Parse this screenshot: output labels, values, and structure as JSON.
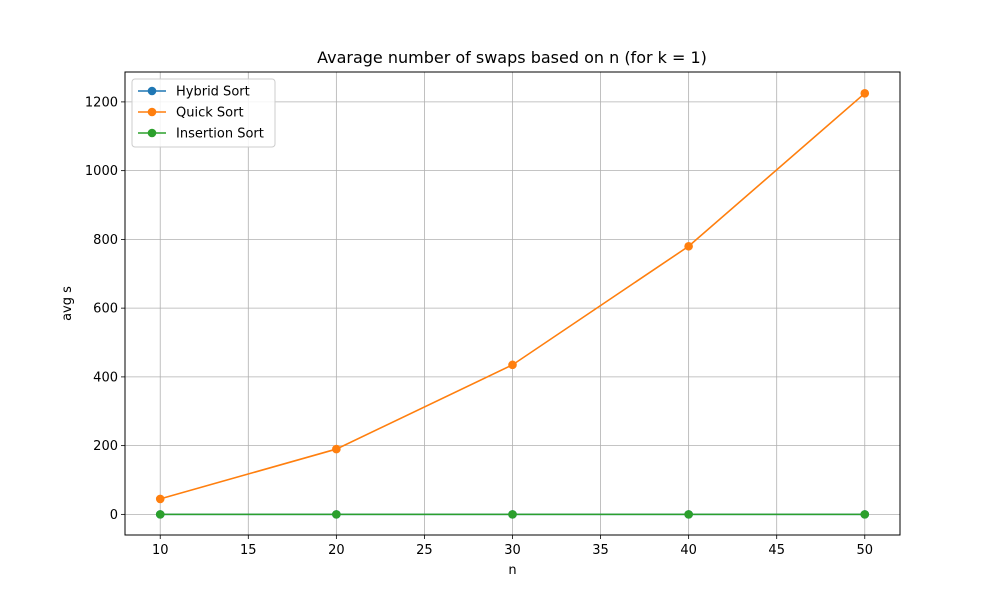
{
  "chart_data": {
    "type": "line",
    "title": "Avarage number of swaps based on n (for k = 1)",
    "xlabel": "n",
    "ylabel": "avg s",
    "xlim": [
      8.0,
      52.0
    ],
    "ylim": [
      -60,
      1287
    ],
    "x_ticks": [
      10,
      15,
      20,
      25,
      30,
      35,
      40,
      45,
      50
    ],
    "y_ticks": [
      0,
      200,
      400,
      600,
      800,
      1000,
      1200
    ],
    "grid": true,
    "legend_position": "top-left",
    "x": [
      10,
      20,
      30,
      40,
      50
    ],
    "series": [
      {
        "name": "Hybrid Sort",
        "color": "#1f77b4",
        "marker": "circle",
        "values": [
          0,
          0,
          0,
          0,
          0
        ]
      },
      {
        "name": "Quick Sort",
        "color": "#ff7f0e",
        "marker": "circle",
        "values": [
          45,
          190,
          435,
          780,
          1225
        ]
      },
      {
        "name": "Insertion Sort",
        "color": "#2ca02c",
        "marker": "circle",
        "values": [
          0,
          0,
          0,
          0,
          0
        ]
      }
    ]
  }
}
